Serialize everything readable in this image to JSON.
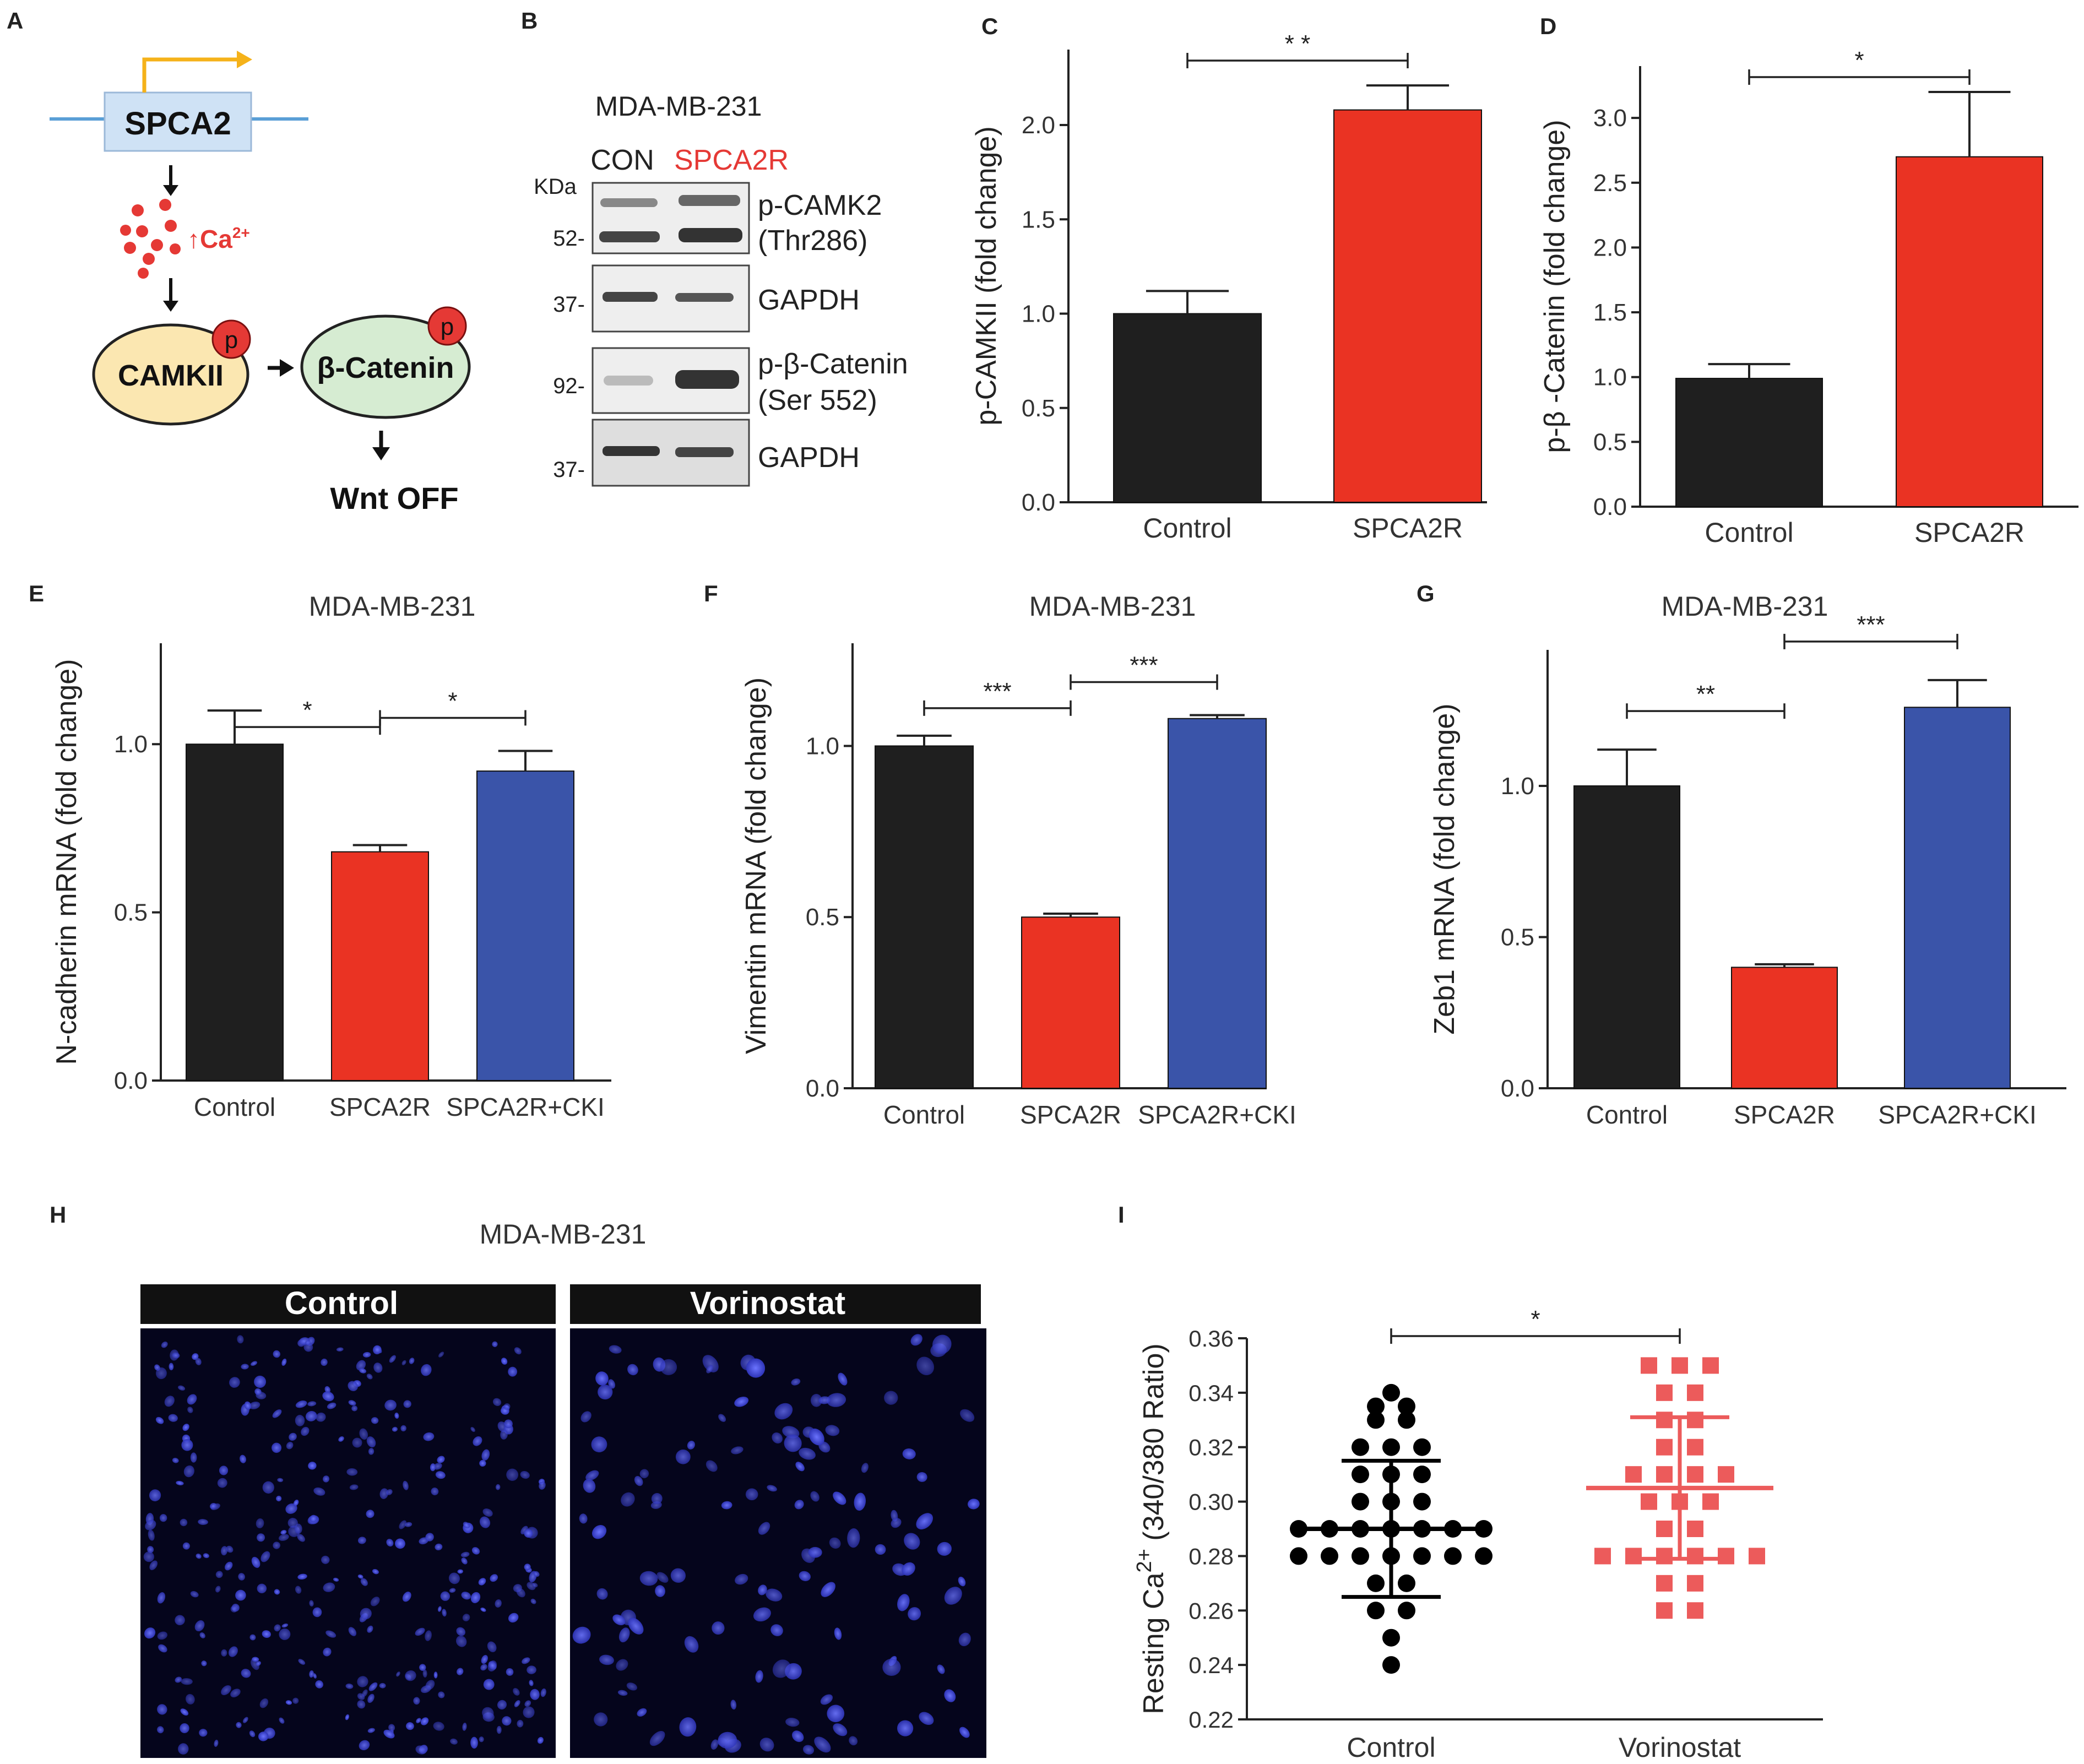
{
  "panel_letters": {
    "A": "A",
    "B": "B",
    "C": "C",
    "D": "D",
    "E": "E",
    "F": "F",
    "G": "G",
    "H": "H",
    "I": "I"
  },
  "colors": {
    "black": "#1f1f1f",
    "red": "#ea3323",
    "blue": "#3a54a9",
    "scatter_control": "#000000",
    "scatter_vorinostat": "#ec5b5b",
    "arrow_orange": "#f5b21a"
  },
  "diagram_a": {
    "gene": "SPCA2",
    "ion": "Ca",
    "ion_charge": "2+",
    "ion_arrow": "↑",
    "kinase": "CAMKII",
    "target": "β-Catenin",
    "phospho": "p",
    "outcome": "Wnt OFF"
  },
  "western_b": {
    "cell_line": "MDA-MB-231",
    "lane_con": "CON",
    "lane_spca2r": "SPCA2R",
    "kda_header": "KDa",
    "markers": [
      "52-",
      "37-",
      "92-",
      "37-"
    ],
    "blots": [
      {
        "label_1": "p-CAMK2",
        "label_2": "(Thr286)"
      },
      {
        "label_1": "GAPDH",
        "label_2": ""
      },
      {
        "label_1": "p-β-Catenin",
        "label_2": "(Ser 552)"
      },
      {
        "label_1": "GAPDH",
        "label_2": ""
      }
    ]
  },
  "images_h": {
    "title": "MDA-MB-231",
    "panel_labels": [
      "Control",
      "Vorinostat"
    ]
  },
  "chart_data": [
    {
      "id": "C",
      "type": "bar",
      "title": "",
      "ylabel": "p-CAMKII (fold change)",
      "categories": [
        "Control",
        "SPCA2R"
      ],
      "values": [
        1.0,
        2.08
      ],
      "errors": [
        0.12,
        0.13
      ],
      "bar_colors": [
        "black",
        "red"
      ],
      "ylim": [
        0,
        2.4
      ],
      "yticks": [
        "0.0",
        "0.5",
        "1.0",
        "1.5",
        "2.0"
      ],
      "significance": [
        {
          "from": 0,
          "to": 1,
          "label": "* *"
        }
      ]
    },
    {
      "id": "D",
      "type": "bar",
      "title": "",
      "ylabel": "p-β -Catenin (fold change)",
      "categories": [
        "Control",
        "SPCA2R"
      ],
      "values": [
        0.99,
        2.7
      ],
      "errors": [
        0.11,
        0.5
      ],
      "bar_colors": [
        "black",
        "red"
      ],
      "ylim": [
        0,
        3.4
      ],
      "yticks": [
        "0.0",
        "0.5",
        "1.0",
        "1.5",
        "2.0",
        "2.5",
        "3.0"
      ],
      "significance": [
        {
          "from": 0,
          "to": 1,
          "label": "*"
        }
      ]
    },
    {
      "id": "E",
      "type": "bar",
      "title": "MDA-MB-231",
      "ylabel": "N-cadherin mRNA (fold change)",
      "categories": [
        "Control",
        "SPCA2R",
        "SPCA2R+CKI"
      ],
      "values": [
        1.0,
        0.68,
        0.92
      ],
      "errors": [
        0.1,
        0.02,
        0.06
      ],
      "bar_colors": [
        "black",
        "red",
        "blue"
      ],
      "ylim": [
        0,
        1.3
      ],
      "yticks": [
        "0.0",
        "0.5",
        "1.0"
      ],
      "significance": [
        {
          "from": 0,
          "to": 1,
          "label": "*"
        },
        {
          "from": 1,
          "to": 2,
          "label": "*"
        }
      ]
    },
    {
      "id": "F",
      "type": "bar",
      "title": "MDA-MB-231",
      "ylabel": "Vimentin mRNA (fold change)",
      "categories": [
        "Control",
        "SPCA2R",
        "SPCA2R+CKI"
      ],
      "values": [
        1.0,
        0.5,
        1.08
      ],
      "errors": [
        0.03,
        0.01,
        0.01
      ],
      "bar_colors": [
        "black",
        "red",
        "blue"
      ],
      "ylim": [
        0,
        1.3
      ],
      "yticks": [
        "0.0",
        "0.5",
        "1.0"
      ],
      "significance": [
        {
          "from": 0,
          "to": 1,
          "label": "***"
        },
        {
          "from": 1,
          "to": 2,
          "label": "***"
        }
      ]
    },
    {
      "id": "G",
      "type": "bar",
      "title": "MDA-MB-231",
      "ylabel": "Zeb1 mRNA (fold change)",
      "categories": [
        "Control",
        "SPCA2R",
        "SPCA2R+CKI"
      ],
      "values": [
        1.0,
        0.4,
        1.26
      ],
      "errors": [
        0.12,
        0.01,
        0.09
      ],
      "bar_colors": [
        "black",
        "red",
        "blue"
      ],
      "ylim": [
        0,
        1.45
      ],
      "yticks": [
        "0.0",
        "0.5",
        "1.0"
      ],
      "significance": [
        {
          "from": 0,
          "to": 1,
          "label": "**"
        },
        {
          "from": 1,
          "to": 2,
          "label": "***"
        }
      ]
    },
    {
      "id": "I",
      "type": "scatter",
      "title": "",
      "ylabel_prefix": "Resting Ca",
      "ylabel_sup": "2+",
      "ylabel_suffix": " (340/380 Ratio)",
      "categories": [
        "Control",
        "Vorinostat"
      ],
      "ylim": [
        0.22,
        0.36
      ],
      "yticks": [
        "0.22",
        "0.24",
        "0.26",
        "0.28",
        "0.30",
        "0.32",
        "0.34",
        "0.36"
      ],
      "series": [
        {
          "name": "Control",
          "marker": "circle",
          "color": "scatter_control",
          "mean": 0.29,
          "sd": 0.025,
          "points": [
            0.34,
            0.335,
            0.335,
            0.33,
            0.33,
            0.32,
            0.32,
            0.32,
            0.31,
            0.31,
            0.31,
            0.3,
            0.3,
            0.3,
            0.29,
            0.29,
            0.29,
            0.29,
            0.29,
            0.29,
            0.29,
            0.28,
            0.28,
            0.28,
            0.28,
            0.28,
            0.28,
            0.28,
            0.27,
            0.27,
            0.26,
            0.26,
            0.25,
            0.24
          ]
        },
        {
          "name": "Vorinostat",
          "marker": "square",
          "color": "scatter_vorinostat",
          "mean": 0.305,
          "sd": 0.026,
          "points": [
            0.35,
            0.35,
            0.35,
            0.34,
            0.34,
            0.33,
            0.33,
            0.32,
            0.32,
            0.31,
            0.31,
            0.31,
            0.31,
            0.3,
            0.3,
            0.3,
            0.29,
            0.29,
            0.28,
            0.28,
            0.28,
            0.28,
            0.28,
            0.28,
            0.27,
            0.27,
            0.26,
            0.26
          ]
        }
      ],
      "significance": [
        {
          "from": 0,
          "to": 1,
          "label": "*"
        }
      ]
    }
  ]
}
